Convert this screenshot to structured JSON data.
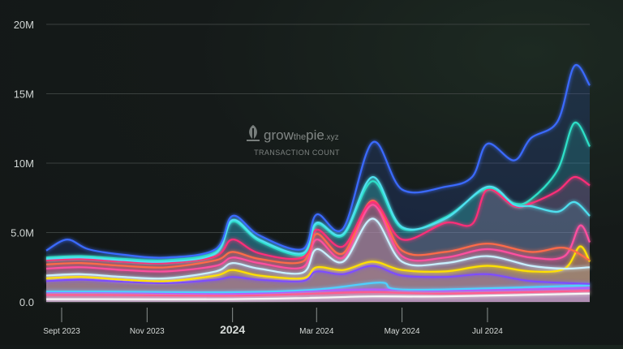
{
  "brand": {
    "name_prefix": "grow",
    "name_the": "the",
    "name_suffix": "pie",
    "name_tld": ".xyz",
    "subtitle": "TRANSACTION COUNT"
  },
  "chart_data": {
    "type": "area",
    "title": "",
    "ylabel": "",
    "xlabel": "",
    "ylim": [
      0,
      20000000
    ],
    "y_ticks": [
      {
        "value": 0,
        "label": "0.0"
      },
      {
        "value": 5000000,
        "label": "5.0M"
      },
      {
        "value": 10000000,
        "label": "10M"
      },
      {
        "value": 15000000,
        "label": "15M"
      },
      {
        "value": 20000000,
        "label": "20M"
      }
    ],
    "x_range": [
      "2023-08-21",
      "2024-09-12"
    ],
    "x_ticks": [
      {
        "date": "2023-09-01",
        "label": "Sept 2023",
        "major": false
      },
      {
        "date": "2023-11-01",
        "label": "Nov 2023",
        "major": false
      },
      {
        "date": "2024-01-01",
        "label": "2024",
        "major": true
      },
      {
        "date": "2024-03-01",
        "label": "Mar 2024",
        "major": false
      },
      {
        "date": "2024-05-01",
        "label": "May 2024",
        "major": false
      },
      {
        "date": "2024-07-01",
        "label": "Jul 2024",
        "major": false
      }
    ],
    "grid": true,
    "legend": "none",
    "note": "Stacked series; values are cumulative top-of-band levels (M transactions)",
    "series": [
      {
        "color": "#f7f7f7",
        "points": [
          [
            "2023-08-21",
            0.2
          ],
          [
            "2023-10-01",
            0.2
          ],
          [
            "2024-01-01",
            0.2
          ],
          [
            "2024-03-01",
            0.3
          ],
          [
            "2024-04-10",
            0.4
          ],
          [
            "2024-06-01",
            0.4
          ],
          [
            "2024-09-12",
            0.6
          ]
        ]
      },
      {
        "color": "#ff5d8f",
        "points": [
          [
            "2023-08-21",
            0.5
          ],
          [
            "2023-10-01",
            0.5
          ],
          [
            "2024-01-01",
            0.45
          ],
          [
            "2024-03-01",
            0.6
          ],
          [
            "2024-04-10",
            0.7
          ],
          [
            "2024-06-01",
            0.6
          ],
          [
            "2024-09-12",
            0.8
          ]
        ]
      },
      {
        "color": "#b35dff",
        "points": [
          [
            "2023-08-21",
            0.7
          ],
          [
            "2023-10-01",
            0.7
          ],
          [
            "2024-01-01",
            0.6
          ],
          [
            "2024-03-01",
            0.8
          ],
          [
            "2024-04-10",
            0.9
          ],
          [
            "2024-06-01",
            0.8
          ],
          [
            "2024-09-12",
            1.0
          ]
        ]
      },
      {
        "color": "#4fd0ff",
        "points": [
          [
            "2023-08-21",
            0.75
          ],
          [
            "2023-10-01",
            0.75
          ],
          [
            "2024-01-01",
            0.7
          ],
          [
            "2024-03-01",
            0.9
          ],
          [
            "2024-04-15",
            1.4
          ],
          [
            "2024-04-25",
            0.95
          ],
          [
            "2024-06-01",
            0.9
          ],
          [
            "2024-09-12",
            1.2
          ]
        ]
      },
      {
        "color": "#7d4dff",
        "points": [
          [
            "2023-08-21",
            1.5
          ],
          [
            "2023-09-15",
            1.6
          ],
          [
            "2023-10-15",
            1.45
          ],
          [
            "2023-11-15",
            1.35
          ],
          [
            "2023-12-20",
            1.6
          ],
          [
            "2024-01-01",
            1.8
          ],
          [
            "2024-01-20",
            1.6
          ],
          [
            "2024-02-20",
            1.5
          ],
          [
            "2024-03-01",
            2.2
          ],
          [
            "2024-03-20",
            2.0
          ],
          [
            "2024-04-10",
            2.6
          ],
          [
            "2024-05-01",
            1.9
          ],
          [
            "2024-06-01",
            1.8
          ],
          [
            "2024-07-01",
            2.0
          ],
          [
            "2024-08-01",
            1.5
          ],
          [
            "2024-09-12",
            1.3
          ]
        ]
      },
      {
        "color": "#ffe100",
        "points": [
          [
            "2023-08-21",
            1.7
          ],
          [
            "2023-09-15",
            1.8
          ],
          [
            "2023-10-15",
            1.6
          ],
          [
            "2023-11-15",
            1.5
          ],
          [
            "2023-12-20",
            1.9
          ],
          [
            "2024-01-01",
            2.3
          ],
          [
            "2024-01-20",
            1.9
          ],
          [
            "2024-02-20",
            1.7
          ],
          [
            "2024-03-01",
            2.5
          ],
          [
            "2024-03-20",
            2.3
          ],
          [
            "2024-04-10",
            2.9
          ],
          [
            "2024-05-01",
            2.3
          ],
          [
            "2024-06-01",
            2.2
          ],
          [
            "2024-07-01",
            2.6
          ],
          [
            "2024-08-01",
            2.2
          ],
          [
            "2024-08-25",
            2.4
          ],
          [
            "2024-09-05",
            4.0
          ],
          [
            "2024-09-12",
            2.9
          ]
        ]
      },
      {
        "color": "#c9f0ff",
        "points": [
          [
            "2023-08-21",
            1.9
          ],
          [
            "2023-09-15",
            2.0
          ],
          [
            "2023-10-15",
            1.8
          ],
          [
            "2023-11-15",
            1.7
          ],
          [
            "2023-12-20",
            2.2
          ],
          [
            "2024-01-01",
            2.8
          ],
          [
            "2024-01-20",
            2.4
          ],
          [
            "2024-02-20",
            2.1
          ],
          [
            "2024-03-01",
            3.8
          ],
          [
            "2024-03-20",
            2.9
          ],
          [
            "2024-04-10",
            6.0
          ],
          [
            "2024-05-01",
            2.9
          ],
          [
            "2024-06-01",
            2.8
          ],
          [
            "2024-07-01",
            3.3
          ],
          [
            "2024-08-01",
            2.6
          ],
          [
            "2024-08-25",
            2.4
          ],
          [
            "2024-09-12",
            2.5
          ]
        ]
      },
      {
        "color": "#ff4fa0",
        "points": [
          [
            "2023-08-21",
            2.4
          ],
          [
            "2023-09-15",
            2.5
          ],
          [
            "2023-10-15",
            2.3
          ],
          [
            "2023-11-15",
            2.2
          ],
          [
            "2023-12-20",
            2.6
          ],
          [
            "2024-01-01",
            3.2
          ],
          [
            "2024-01-20",
            2.8
          ],
          [
            "2024-02-20",
            2.5
          ],
          [
            "2024-03-01",
            4.5
          ],
          [
            "2024-03-20",
            3.2
          ],
          [
            "2024-04-10",
            7.0
          ],
          [
            "2024-05-01",
            3.3
          ],
          [
            "2024-06-01",
            3.2
          ],
          [
            "2024-07-01",
            3.8
          ],
          [
            "2024-08-01",
            3.2
          ],
          [
            "2024-08-25",
            3.3
          ],
          [
            "2024-09-05",
            5.5
          ],
          [
            "2024-09-12",
            4.3
          ]
        ]
      },
      {
        "color": "#ff6b4a",
        "points": [
          [
            "2023-08-21",
            2.7
          ],
          [
            "2023-09-15",
            2.8
          ],
          [
            "2023-10-15",
            2.6
          ],
          [
            "2023-11-15",
            2.5
          ],
          [
            "2023-12-20",
            3.0
          ],
          [
            "2024-01-01",
            3.6
          ],
          [
            "2024-01-20",
            3.1
          ],
          [
            "2024-02-20",
            2.9
          ],
          [
            "2024-03-01",
            4.9
          ],
          [
            "2024-03-20",
            3.5
          ],
          [
            "2024-04-10",
            7.3
          ],
          [
            "2024-05-01",
            3.7
          ],
          [
            "2024-06-01",
            3.6
          ],
          [
            "2024-07-01",
            4.2
          ],
          [
            "2024-08-01",
            3.6
          ],
          [
            "2024-08-25",
            3.9
          ],
          [
            "2024-09-12",
            3.0
          ]
        ]
      },
      {
        "color": "#ff2d78",
        "points": [
          [
            "2023-08-21",
            3.0
          ],
          [
            "2023-09-15",
            3.1
          ],
          [
            "2023-10-15",
            2.9
          ],
          [
            "2023-11-15",
            2.8
          ],
          [
            "2023-12-20",
            3.3
          ],
          [
            "2024-01-01",
            4.5
          ],
          [
            "2024-01-20",
            3.5
          ],
          [
            "2024-02-20",
            3.2
          ],
          [
            "2024-03-01",
            5.2
          ],
          [
            "2024-03-20",
            4.0
          ],
          [
            "2024-04-10",
            7.2
          ],
          [
            "2024-05-01",
            4.5
          ],
          [
            "2024-06-01",
            5.7
          ],
          [
            "2024-06-20",
            5.6
          ],
          [
            "2024-07-01",
            8.1
          ],
          [
            "2024-07-20",
            6.9
          ],
          [
            "2024-08-01",
            7.1
          ],
          [
            "2024-08-20",
            8.0
          ],
          [
            "2024-09-01",
            9.0
          ],
          [
            "2024-09-12",
            8.4
          ]
        ]
      },
      {
        "color": "#2de0c8",
        "points": [
          [
            "2023-08-21",
            3.2
          ],
          [
            "2023-09-15",
            3.3
          ],
          [
            "2023-10-15",
            3.1
          ],
          [
            "2023-11-15",
            3.0
          ],
          [
            "2023-12-20",
            3.6
          ],
          [
            "2024-01-01",
            5.8
          ],
          [
            "2024-01-20",
            4.4
          ],
          [
            "2024-02-20",
            3.4
          ],
          [
            "2024-03-01",
            5.6
          ],
          [
            "2024-03-20",
            4.8
          ],
          [
            "2024-04-10",
            8.7
          ],
          [
            "2024-05-01",
            5.3
          ],
          [
            "2024-06-01",
            6.1
          ],
          [
            "2024-07-01",
            8.2
          ],
          [
            "2024-07-20",
            7.1
          ],
          [
            "2024-08-01",
            7.4
          ],
          [
            "2024-08-20",
            9.5
          ],
          [
            "2024-09-01",
            12.9
          ],
          [
            "2024-09-12",
            11.2
          ]
        ]
      },
      {
        "color": "#4fe0f0",
        "points": [
          [
            "2023-08-21",
            3.1
          ],
          [
            "2023-09-15",
            3.2
          ],
          [
            "2023-10-15",
            3.0
          ],
          [
            "2023-11-15",
            2.9
          ],
          [
            "2023-12-20",
            3.5
          ],
          [
            "2024-01-01",
            5.9
          ],
          [
            "2024-01-20",
            4.5
          ],
          [
            "2024-02-20",
            3.5
          ],
          [
            "2024-03-01",
            5.7
          ],
          [
            "2024-03-20",
            4.9
          ],
          [
            "2024-04-10",
            9.0
          ],
          [
            "2024-05-01",
            5.4
          ],
          [
            "2024-06-01",
            6.0
          ],
          [
            "2024-07-01",
            8.3
          ],
          [
            "2024-07-20",
            7.0
          ],
          [
            "2024-08-01",
            6.9
          ],
          [
            "2024-08-20",
            6.5
          ],
          [
            "2024-09-01",
            7.2
          ],
          [
            "2024-09-12",
            6.2
          ]
        ]
      },
      {
        "color": "#3a6bff",
        "points": [
          [
            "2023-08-21",
            3.7
          ],
          [
            "2023-09-05",
            4.5
          ],
          [
            "2023-09-20",
            3.8
          ],
          [
            "2023-10-15",
            3.4
          ],
          [
            "2023-11-15",
            3.2
          ],
          [
            "2023-12-20",
            3.8
          ],
          [
            "2024-01-01",
            6.2
          ],
          [
            "2024-01-20",
            4.8
          ],
          [
            "2024-02-20",
            3.8
          ],
          [
            "2024-03-01",
            6.3
          ],
          [
            "2024-03-20",
            5.3
          ],
          [
            "2024-04-10",
            11.5
          ],
          [
            "2024-05-01",
            8.1
          ],
          [
            "2024-06-01",
            8.3
          ],
          [
            "2024-06-20",
            9.0
          ],
          [
            "2024-07-01",
            11.4
          ],
          [
            "2024-07-20",
            10.2
          ],
          [
            "2024-08-01",
            11.8
          ],
          [
            "2024-08-20",
            13.0
          ],
          [
            "2024-09-01",
            17.0
          ],
          [
            "2024-09-12",
            15.6
          ]
        ]
      }
    ]
  }
}
